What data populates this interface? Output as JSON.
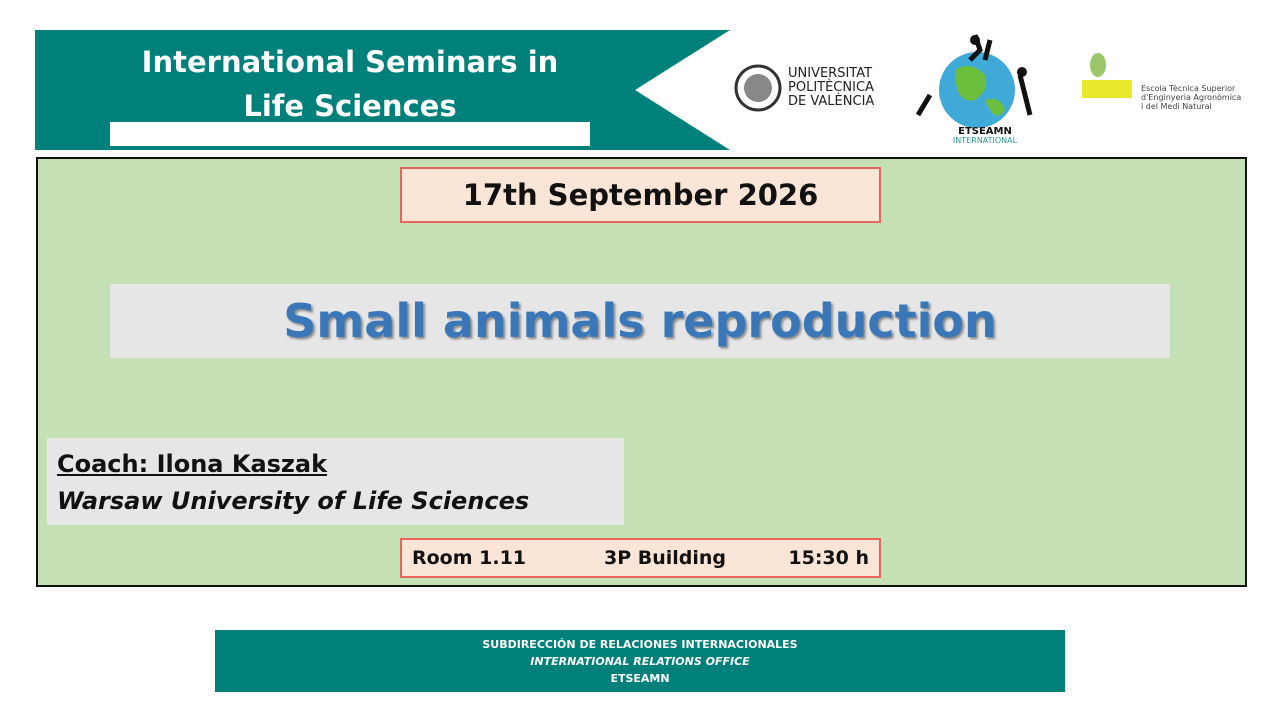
{
  "header": {
    "title_lines": [
      "International Seminars in",
      "Life Sciences"
    ]
  },
  "logos": {
    "upv_lines": [
      "UNIVERSITAT",
      "POLITÈCNICA",
      "DE VALÈNCIA"
    ],
    "etseamn": "ETSEAMN",
    "etseamn_sub": "INTERNATIONAL",
    "school_lines": [
      "Escola Tècnica Superior",
      "d'Enginyeria Agronòmica",
      "i del Medi Natural"
    ]
  },
  "date": "17th September 2026",
  "title": "Small animals reproduction",
  "coach": {
    "name": "Coach: Ilona Kaszak",
    "institution": "Warsaw University of Life Sciences"
  },
  "details": {
    "room": "Room 1.11",
    "building": "3P Building",
    "time": "15:30 h"
  },
  "footer": {
    "lines": [
      "SUBDIRECCIÓN DE RELACIONES INTERNACIONALES",
      "INTERNATIONAL RELATIONS OFFICE",
      "ETSEAMN"
    ]
  }
}
